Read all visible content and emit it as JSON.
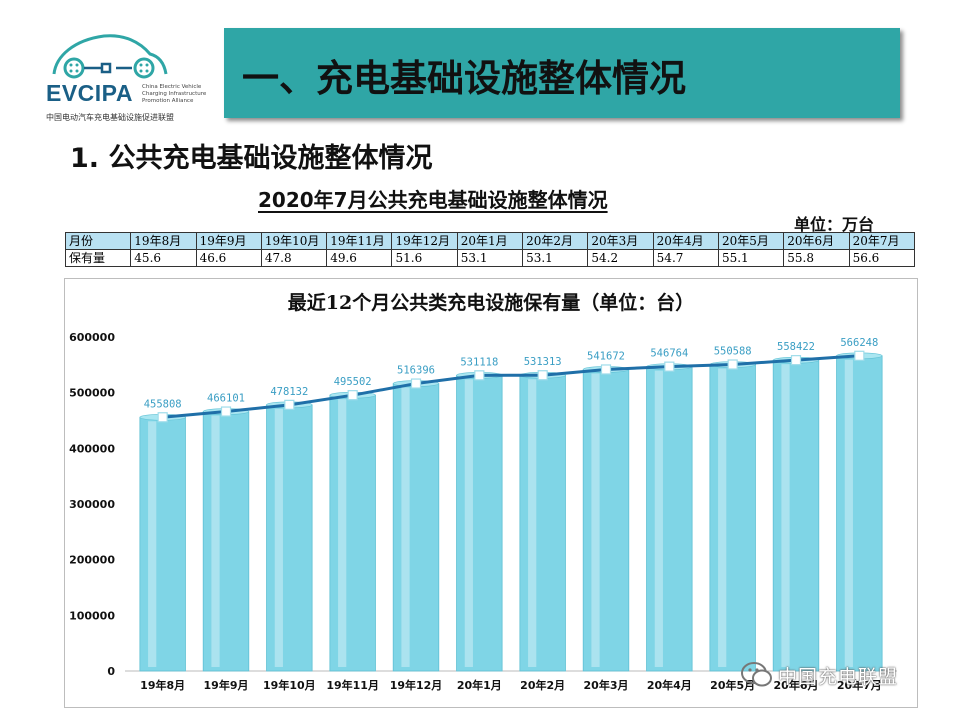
{
  "logo": {
    "name": "EVCIPA",
    "subtitle": "中国电动汽车充电基础设施促进联盟",
    "en_lines": [
      "China Electric Vehicle",
      "Charging Infrastructure",
      "Promotion Alliance"
    ],
    "color": "#1a5f86"
  },
  "header": {
    "title": "一、充电基础设施整体情况",
    "bar_color": "#2fa6a6"
  },
  "section": {
    "title": "1. 公共充电基础设施整体情况"
  },
  "table": {
    "title": "2020年7月公共充电基础设施整体情况",
    "unit": "单位：万台",
    "row_labels": [
      "月份",
      "保有量"
    ],
    "months": [
      "19年8月",
      "19年9月",
      "19年10月",
      "19年11月",
      "19年12月",
      "20年1月",
      "20年2月",
      "20年3月",
      "20年4月",
      "20年5月",
      "20年6月",
      "20年7月"
    ],
    "values": [
      "45.6",
      "46.6",
      "47.8",
      "49.6",
      "51.6",
      "53.1",
      "53.1",
      "54.2",
      "54.7",
      "55.1",
      "55.8",
      "56.6"
    ]
  },
  "chart_data": {
    "type": "bar",
    "title": "最近12个月公共类充电设施保有量（单位：台）",
    "categories": [
      "19年8月",
      "19年9月",
      "19年10月",
      "19年11月",
      "19年12月",
      "20年1月",
      "20年2月",
      "20年3月",
      "20年4月",
      "20年5月",
      "20年6月",
      "20年7月"
    ],
    "values": [
      455808,
      466101,
      478132,
      495502,
      516396,
      531118,
      531313,
      541672,
      546764,
      550588,
      558422,
      566248
    ],
    "overlay": "line",
    "ylim": [
      0,
      600000
    ],
    "yticks": [
      0,
      100000,
      200000,
      300000,
      400000,
      500000,
      600000
    ],
    "grid": false,
    "legend": "none",
    "bar_color": "#7fd5e6",
    "line_color": "#1f6fa8",
    "label_color": "#3a9ec4"
  },
  "watermark": {
    "text": "中国充电联盟"
  }
}
